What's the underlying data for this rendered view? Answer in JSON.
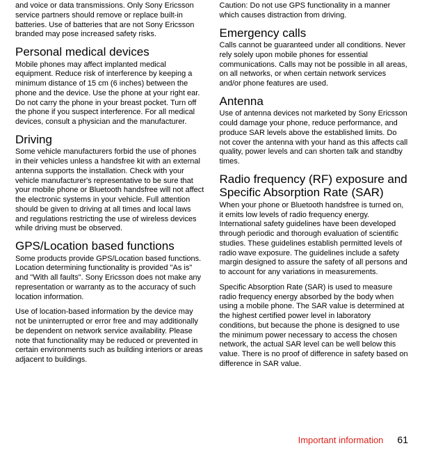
{
  "typography": {
    "body_fontsize": 11,
    "heading_fontsize": 17,
    "footer_label_fontsize": 13,
    "footer_num_fontsize": 14,
    "body_color": "#000000",
    "footer_label_color": "#d9241c",
    "background": "#ffffff"
  },
  "left_col": {
    "p0": "and voice or data transmissions. Only Sony Ericsson service partners should remove or replace built-in batteries. Use of batteries that are not Sony Ericsson branded may pose increased safety risks.",
    "h1": "Personal medical devices",
    "p1": "Mobile phones may affect implanted medical equipment. Reduce risk of interference by keeping a minimum distance of 15 cm (6 inches) between the phone and the device. Use the phone at your right ear. Do not carry the phone in your breast pocket. Turn off the phone if you suspect interference. For all medical devices, consult a physician and the manufacturer.",
    "h2": "Driving",
    "p2": "Some vehicle manufacturers forbid the use of phones in their vehicles unless a handsfree kit with an external antenna supports the installation. Check with your vehicle manufacturer's representative to be sure that your mobile phone or Bluetooth handsfree will not affect the electronic systems in your vehicle. Full attention should be given to driving at all times and local laws and regulations restricting the use of wireless devices while driving must be observed.",
    "h3": "GPS/Location based functions",
    "p3": "Some products provide GPS/Location based functions. Location determining functionality is provided \"As is\" and \"With all faults\". Sony Ericsson does not make any representation or warranty as to the accuracy of such location information.",
    "p4": "Use of location-based information by the device may not be uninterrupted or error free and may additionally be dependent on network service availability. Please note that functionality may be reduced or prevented in certain environments such as building interiors or areas adjacent to buildings."
  },
  "right_col": {
    "p0": "Caution: Do not use GPS functionality in a manner which causes distraction from driving.",
    "h1": "Emergency calls",
    "p1": "Calls cannot be guaranteed under all conditions. Never rely solely upon mobile phones for essential communications. Calls may not be possible in all areas, on all networks, or when certain network services and/or phone features are used.",
    "h2": "Antenna",
    "p2": "Use of antenna devices not marketed by Sony Ericsson could damage your phone, reduce performance, and produce SAR levels above the established limits. Do not cover the antenna with your hand as this affects call quality, power levels and can shorten talk and standby times.",
    "h3": "Radio frequency (RF) exposure and Specific Absorption Rate (SAR)",
    "p3": "When your phone or Bluetooth handsfree is turned on, it emits low levels of radio frequency energy. International safety guidelines have been developed through periodic and thorough evaluation of scientific studies. These guidelines establish permitted levels of radio wave exposure. The guidelines include a safety margin designed to assure the safety of all persons and to account for any variations in measurements.",
    "p4": "Specific Absorption Rate (SAR) is used to measure radio frequency energy absorbed by the body when using a mobile phone. The SAR value is determined at the highest certified power level in laboratory conditions, but because the phone is designed to use the minimum power necessary to access the chosen network, the actual SAR level can be well below this value. There is no proof of difference in safety based on difference in SAR value."
  },
  "footer": {
    "label": "Important information",
    "page": "61"
  }
}
